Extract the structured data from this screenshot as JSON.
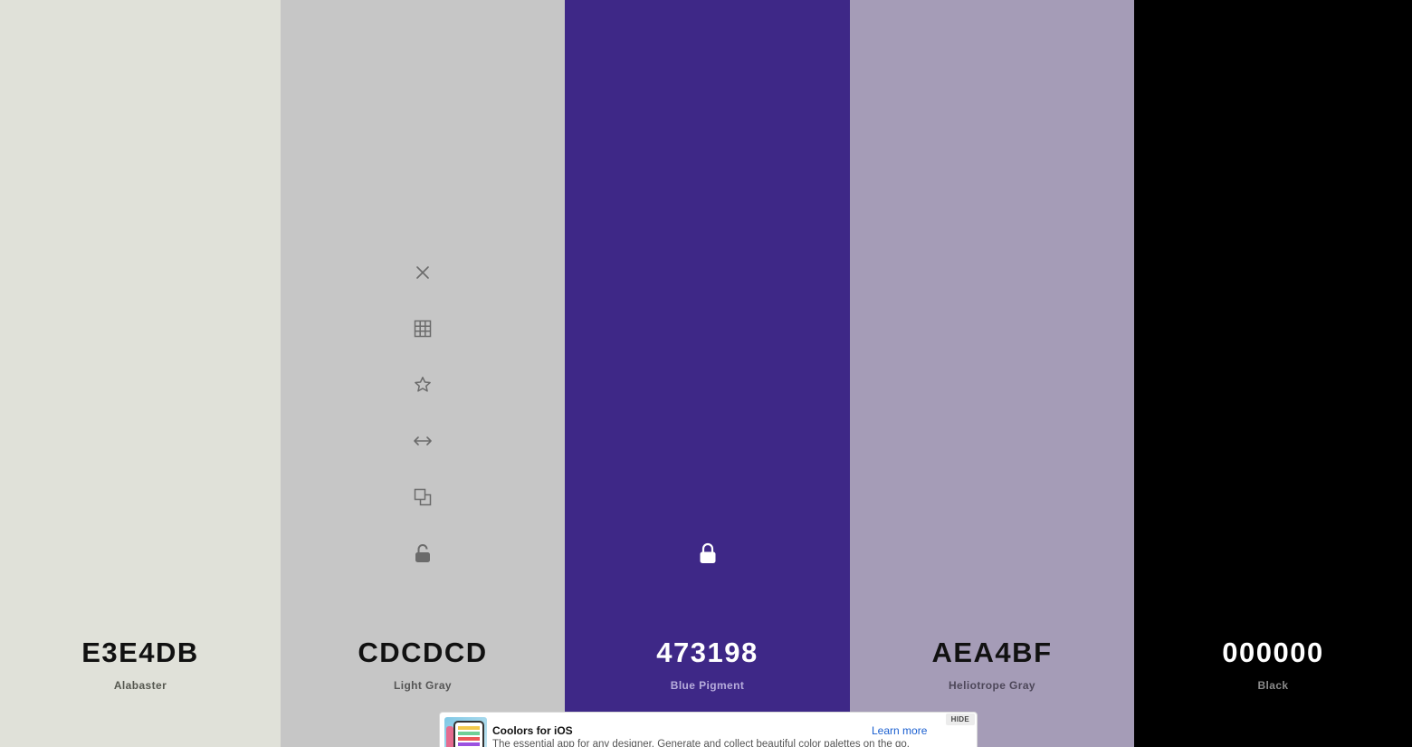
{
  "swatches": [
    {
      "hex": "E3E4DB",
      "name": "Alabaster",
      "bg": "#e0e1d9",
      "text_color": "#111111",
      "name_color": "#55574f",
      "locked": false,
      "hovered": false
    },
    {
      "hex": "CDCDCD",
      "name": "Light Gray",
      "bg": "#c6c6c6",
      "text_color": "#111111",
      "name_color": "#555555",
      "locked": false,
      "hovered": true
    },
    {
      "hex": "473198",
      "name": "Blue Pigment",
      "bg": "#3e2887",
      "text_color": "#ffffff",
      "name_color": "#b7addc",
      "locked": true,
      "hovered": false
    },
    {
      "hex": "AEA4BF",
      "name": "Heliotrope Gray",
      "bg": "#a59cb7",
      "text_color": "#111111",
      "name_color": "#4d4759",
      "locked": false,
      "hovered": false
    },
    {
      "hex": "000000",
      "name": "Black",
      "bg": "#000000",
      "text_color": "#ffffff",
      "name_color": "#8a8a8a",
      "locked": false,
      "hovered": false
    }
  ],
  "tools": [
    {
      "icon": "close-icon",
      "action": "remove-color"
    },
    {
      "icon": "grid-icon",
      "action": "view-shades"
    },
    {
      "icon": "star-icon",
      "action": "save-color"
    },
    {
      "icon": "drag-arrows-icon",
      "action": "drag"
    },
    {
      "icon": "copy-icon",
      "action": "copy-hex"
    },
    {
      "icon": "unlock-icon",
      "action": "toggle-lock"
    }
  ],
  "tool_color": "#6b6b6b",
  "lock_icon": "lock-icon",
  "ad": {
    "title": "Coolors for iOS",
    "description": "The essential app for any designer. Generate and collect beautiful color palettes on the go.",
    "cta": "Learn more",
    "hide_label": "HIDE",
    "cta_color": "#1a5fd0"
  }
}
